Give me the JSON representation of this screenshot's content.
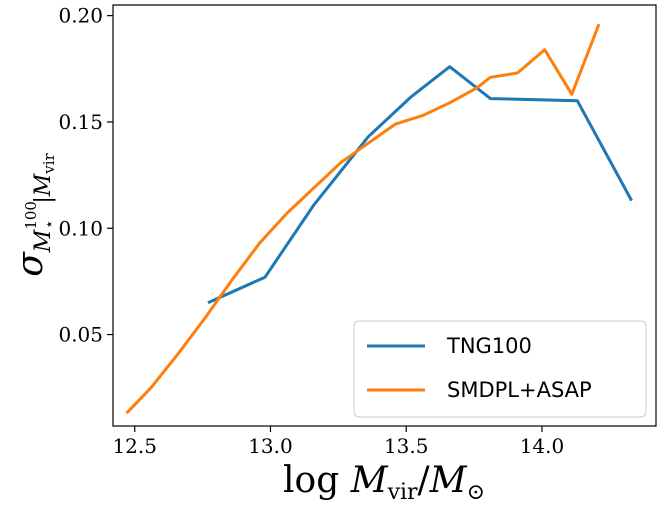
{
  "chart_data": {
    "type": "line",
    "title": "",
    "xlabel": {
      "pre": "log ",
      "var": "M",
      "sub": "vir",
      "slash": "/",
      "var2": "M",
      "sub2": "⊙"
    },
    "ylabel": {
      "var": "σ",
      "sub_var": "M",
      "sub_sup": "100",
      "sub_sub": "⋆",
      "bar": "|",
      "var2": "M",
      "sub2": "vir"
    },
    "xlim": [
      12.42,
      14.42
    ],
    "ylim": [
      0.007,
      0.205
    ],
    "xticks": [
      12.5,
      13.0,
      13.5,
      14.0
    ],
    "xtick_labels": [
      "12.5",
      "13.0",
      "13.5",
      "14.0"
    ],
    "yticks": [
      0.05,
      0.1,
      0.15,
      0.2
    ],
    "ytick_labels": [
      "0.05",
      "0.10",
      "0.15",
      "0.20"
    ],
    "grid": false,
    "legend_position": "lower-right",
    "series": [
      {
        "name": "TNG100",
        "color": "#1f77b4",
        "x": [
          12.77,
          12.98,
          13.16,
          13.36,
          13.52,
          13.66,
          13.81,
          14.13,
          14.33
        ],
        "y": [
          0.065,
          0.077,
          0.111,
          0.143,
          0.162,
          0.176,
          0.161,
          0.16,
          0.113
        ]
      },
      {
        "name": "SMDPL+ASAP",
        "color": "#ff7f0e",
        "x": [
          12.47,
          12.56,
          12.66,
          12.76,
          12.86,
          12.96,
          13.06,
          13.16,
          13.26,
          13.36,
          13.46,
          13.56,
          13.66,
          13.76,
          13.81,
          13.91,
          14.01,
          14.11,
          14.21
        ],
        "y": [
          0.013,
          0.025,
          0.041,
          0.058,
          0.076,
          0.093,
          0.107,
          0.119,
          0.131,
          0.14,
          0.149,
          0.153,
          0.159,
          0.166,
          0.171,
          0.173,
          0.184,
          0.163,
          0.196
        ]
      }
    ]
  }
}
